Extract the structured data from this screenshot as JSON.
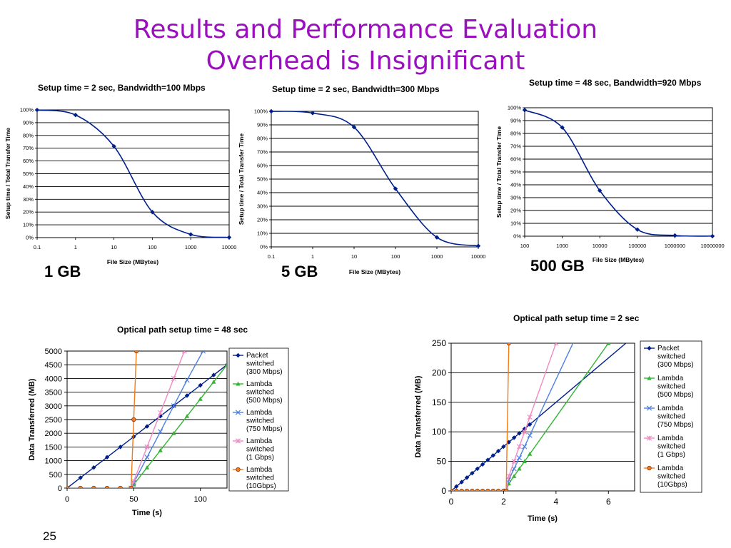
{
  "slide": {
    "title_line1": "Results and Performance Evaluation",
    "title_line2": "Overhead is Insignificant",
    "page_number": "25"
  },
  "chart_data": [
    {
      "id": "top1",
      "type": "line",
      "title": "Setup time = 2 sec, Bandwidth=100 Mbps",
      "xlabel": "File Size (MBytes)",
      "ylabel": "Setup time / Total Transfer Time",
      "x_scale": "log",
      "x_ticks": [
        "0.1",
        "1",
        "10",
        "100",
        "1000",
        "10000"
      ],
      "y_ticks": [
        "0%",
        "10%",
        "20%",
        "30%",
        "40%",
        "50%",
        "60%",
        "70%",
        "80%",
        "90%",
        "100%"
      ],
      "ylim": [
        0,
        100
      ],
      "series": [
        {
          "x": [
            0.1,
            1,
            10,
            100,
            1000,
            10000
          ],
          "y": [
            99.9,
            96,
            71.5,
            20,
            2.5,
            0.2
          ]
        }
      ],
      "caption": "1 GB",
      "color": "#001f8c"
    },
    {
      "id": "top2",
      "type": "line",
      "title": "Setup time = 2 sec, Bandwidth=300 Mbps",
      "xlabel": "File Size (MBytes)",
      "ylabel": "Setup time / Total Transfer Time",
      "x_scale": "log",
      "x_ticks": [
        "0.1",
        "1",
        "10",
        "100",
        "1000",
        "10000"
      ],
      "y_ticks": [
        "0%",
        "10%",
        "20%",
        "30%",
        "40%",
        "50%",
        "60%",
        "70%",
        "80%",
        "90%",
        "100%"
      ],
      "ylim": [
        0,
        100
      ],
      "series": [
        {
          "x": [
            0.1,
            1,
            10,
            100,
            1000,
            10000
          ],
          "y": [
            100,
            98.7,
            88.3,
            42.9,
            7,
            0.7
          ]
        }
      ],
      "caption": "5 GB",
      "color": "#001f8c"
    },
    {
      "id": "top3",
      "type": "line",
      "title": "Setup time = 48 sec, Bandwidth=920 Mbps",
      "xlabel": "File Size (MBytes)",
      "ylabel": "Setup time / Total Transfer Time",
      "x_scale": "log",
      "x_ticks": [
        "100",
        "1000",
        "10000",
        "100000",
        "1000000",
        "10000000"
      ],
      "y_ticks": [
        "0%",
        "10%",
        "20%",
        "30%",
        "40%",
        "50%",
        "60%",
        "70%",
        "80%",
        "90%",
        "100%"
      ],
      "ylim": [
        0,
        100
      ],
      "series": [
        {
          "x": [
            100,
            1000,
            10000,
            100000,
            1000000,
            10000000
          ],
          "y": [
            98.2,
            84.6,
            35.5,
            5.2,
            0.55,
            0.06
          ]
        }
      ],
      "caption": "500 GB",
      "color": "#001f8c"
    },
    {
      "id": "bottom1",
      "type": "line",
      "title": "Optical path setup time = 48 sec",
      "xlabel": "Time (s)",
      "ylabel": "Data Transferred (MB)",
      "xlim": [
        0,
        120
      ],
      "ylim": [
        0,
        5000
      ],
      "x_ticks": [
        "0",
        "50",
        "100"
      ],
      "y_ticks": [
        "0",
        "500",
        "1000",
        "1500",
        "2000",
        "2500",
        "3000",
        "3500",
        "4000",
        "4500",
        "5000"
      ],
      "series": [
        {
          "name": "Packet switched (300 Mbps)",
          "color": "#001f8c",
          "marker": "diamond",
          "x": [
            0,
            10,
            20,
            30,
            40,
            50,
            60,
            70,
            80,
            90,
            100,
            110,
            120
          ],
          "y": [
            0,
            375,
            750,
            1125,
            1500,
            1875,
            2250,
            2625,
            3000,
            3375,
            3750,
            4125,
            4500
          ]
        },
        {
          "name": "Lambda switched (500 Mbps)",
          "color": "#33b533",
          "marker": "triangle",
          "x": [
            48,
            50,
            60,
            70,
            80,
            90,
            100,
            110,
            120
          ],
          "y": [
            0,
            125,
            750,
            1375,
            2000,
            2625,
            3250,
            3875,
            4500
          ]
        },
        {
          "name": "Lambda switched (750 Mbps)",
          "color": "#4d7fe0",
          "marker": "x",
          "x": [
            48,
            50,
            60,
            70,
            80,
            90,
            102
          ],
          "y": [
            0,
            190,
            1125,
            2060,
            3000,
            3940,
            5000
          ]
        },
        {
          "name": "Lambda switched (1 Gbps)",
          "color": "#f28ac5",
          "marker": "asterisk",
          "x": [
            48,
            50,
            60,
            70,
            80,
            88
          ],
          "y": [
            0,
            250,
            1500,
            2750,
            4000,
            5000
          ]
        },
        {
          "name": "Lambda switched (10Gbps)",
          "color": "#f07c18",
          "marker": "circle",
          "x": [
            0,
            10,
            20,
            30,
            40,
            48,
            50,
            52
          ],
          "y": [
            0,
            0,
            0,
            0,
            0,
            0,
            2500,
            5000
          ]
        }
      ]
    },
    {
      "id": "bottom2",
      "type": "line",
      "title": "Optical path setup time = 2 sec",
      "xlabel": "Time (s)",
      "ylabel": "Data Transferred (MB)",
      "xlim": [
        0,
        7
      ],
      "ylim": [
        0,
        250
      ],
      "x_ticks": [
        "0",
        "2",
        "4",
        "6"
      ],
      "y_ticks": [
        "0",
        "50",
        "100",
        "150",
        "200",
        "250"
      ],
      "series": [
        {
          "name": "Packet switched (300 Mbps)",
          "color": "#001f8c",
          "marker": "diamond",
          "x": [
            0,
            0.2,
            0.4,
            0.6,
            0.8,
            1.0,
            1.2,
            1.4,
            1.6,
            1.8,
            2.0,
            2.2,
            2.4,
            2.6,
            2.8,
            3.0,
            6.8
          ],
          "y": [
            0,
            7.5,
            15,
            22.5,
            30,
            37.5,
            45,
            52.5,
            60,
            67.5,
            75,
            82.5,
            90,
            97.5,
            105,
            112.5,
            255
          ]
        },
        {
          "name": "Lambda switched (500 Mbps)",
          "color": "#33b533",
          "marker": "triangle",
          "x": [
            2.1,
            2.2,
            2.4,
            2.6,
            2.8,
            3.0,
            6.0
          ],
          "y": [
            0,
            12.5,
            25,
            37.5,
            50,
            62.5,
            250
          ]
        },
        {
          "name": "Lambda switched (750 Mbps)",
          "color": "#4d7fe0",
          "marker": "x",
          "x": [
            2.1,
            2.2,
            2.4,
            2.6,
            2.8,
            3.0,
            4.7
          ],
          "y": [
            0,
            19,
            37.5,
            56,
            75,
            94,
            255
          ]
        },
        {
          "name": "Lambda switched (1 Gbps)",
          "color": "#f28ac5",
          "marker": "asterisk",
          "x": [
            2.1,
            2.2,
            2.4,
            2.6,
            2.8,
            3.0,
            4.0
          ],
          "y": [
            0,
            25,
            50,
            75,
            100,
            125,
            250
          ]
        },
        {
          "name": "Lambda switched (10Gbps)",
          "color": "#f07c18",
          "marker": "circle",
          "x": [
            0,
            0.2,
            0.4,
            0.6,
            0.8,
            1.0,
            1.2,
            1.4,
            1.6,
            1.8,
            2.0,
            2.1,
            2.2
          ],
          "y": [
            0,
            0,
            0,
            0,
            0,
            0,
            0,
            0,
            0,
            0,
            0,
            0,
            250
          ]
        }
      ]
    }
  ]
}
